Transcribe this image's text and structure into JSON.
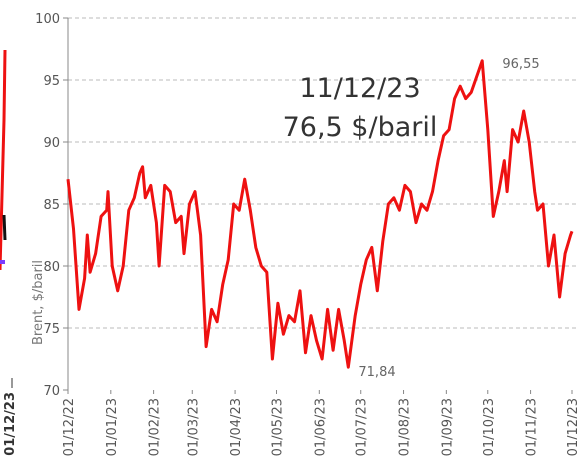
{
  "chart_data": {
    "type": "line",
    "y_label": "Brent, $/baril",
    "annotations": [
      "11/12/23",
      "76,5 $/baril",
      "96,55",
      "71,84",
      "01/12/23"
    ],
    "xlim": [
      0,
      365
    ],
    "xticks": [
      {
        "value": 0,
        "label": "01/12/22"
      },
      {
        "value": 31,
        "label": "01/01/23"
      },
      {
        "value": 62,
        "label": "01/02/23"
      },
      {
        "value": 90,
        "label": "01/03/23"
      },
      {
        "value": 121,
        "label": "01/04/23"
      },
      {
        "value": 151,
        "label": "01/05/23"
      },
      {
        "value": 182,
        "label": "01/06/23"
      },
      {
        "value": 212,
        "label": "01/07/23"
      },
      {
        "value": 243,
        "label": "01/08/23"
      },
      {
        "value": 274,
        "label": "01/09/23"
      },
      {
        "value": 304,
        "label": "01/10/23"
      },
      {
        "value": 335,
        "label": "01/11/23"
      },
      {
        "value": 365,
        "label": "01/12/23"
      }
    ],
    "ylim": [
      70,
      100
    ],
    "yticks": [
      70,
      75,
      80,
      85,
      90,
      95,
      100
    ],
    "grid": true,
    "series": [
      {
        "name": "Brent",
        "color": "#ee1111",
        "x": [
          0,
          4,
          8,
          12,
          14,
          16,
          20,
          24,
          28,
          29,
          32,
          36,
          40,
          44,
          48,
          52,
          54,
          56,
          60,
          64,
          66,
          70,
          74,
          78,
          82,
          84,
          88,
          92,
          96,
          100,
          104,
          108,
          112,
          116,
          120,
          124,
          128,
          132,
          136,
          140,
          144,
          148,
          152,
          156,
          160,
          164,
          168,
          172,
          176,
          180,
          184,
          188,
          192,
          196,
          200,
          203,
          208,
          212,
          216,
          220,
          224,
          228,
          232,
          236,
          240,
          244,
          248,
          252,
          256,
          260,
          264,
          268,
          272,
          276,
          280,
          284,
          288,
          292,
          300,
          304,
          308,
          312,
          316,
          318,
          322,
          326,
          330,
          334,
          338,
          340,
          344,
          348,
          352,
          356,
          360,
          364,
          365
        ],
        "values": [
          87,
          83,
          76.5,
          79,
          82.5,
          79.5,
          81,
          84,
          84.5,
          86,
          80,
          78,
          80,
          84.5,
          85.5,
          87.5,
          88,
          85.5,
          86.5,
          83.5,
          80,
          86.5,
          86,
          83.5,
          84,
          81,
          85,
          86,
          82.5,
          73.5,
          76.5,
          75.5,
          78.5,
          80.5,
          85,
          84.5,
          87,
          84.5,
          81.5,
          80,
          79.5,
          72.5,
          77,
          74.5,
          76,
          75.5,
          78,
          73,
          76,
          74,
          72.5,
          76.5,
          73.2,
          76.5,
          74,
          71.84,
          76,
          78.5,
          80.5,
          81.5,
          78,
          82,
          85,
          85.5,
          84.5,
          86.5,
          86,
          83.5,
          85,
          84.5,
          86,
          88.5,
          90.5,
          91,
          93.5,
          94.5,
          93.5,
          94,
          96.55,
          91,
          84,
          86,
          88.5,
          86,
          91,
          90,
          92.5,
          90,
          86,
          84.5,
          85,
          80,
          82.5,
          77.5,
          81,
          82.5,
          82.8
        ]
      }
    ]
  }
}
